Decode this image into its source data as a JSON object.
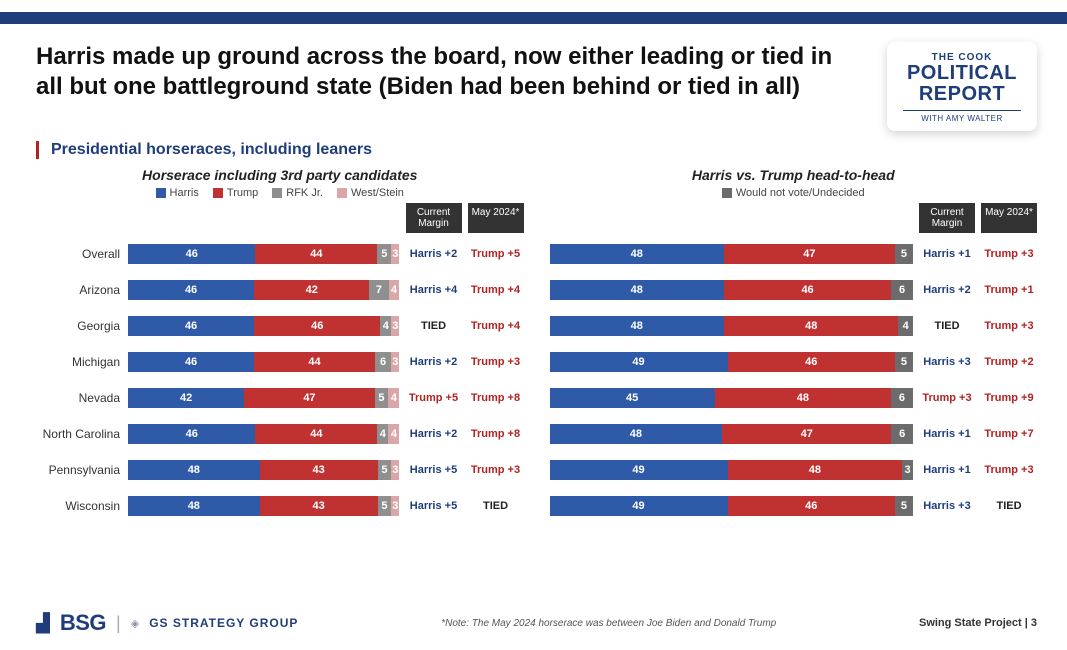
{
  "colors": {
    "harris": "#2e5aa8",
    "trump": "#c03131",
    "rfk": "#8f8f8f",
    "west": "#d9a7a7",
    "undecided": "#6b6b6b",
    "header_bar": "#1f3d7a",
    "margin_harris": "#1f3d7a",
    "margin_trump": "#b22222",
    "margin_tied": "#222222",
    "col_header_bg": "#333333",
    "background": "#ffffff"
  },
  "title": "Harris made up ground across the board, now either leading or tied in all but one battleground state (Biden had been behind or tied in all)",
  "subtitle": "Presidential horseraces, including leaners",
  "logo": {
    "top": "THE COOK",
    "mid1": "POLITICAL",
    "mid2": "REPORT",
    "bot": "WITH AMY WALTER"
  },
  "panel_left": {
    "title": "Horserace including 3rd party candidates",
    "legend": [
      {
        "label": "Harris",
        "color_key": "harris"
      },
      {
        "label": "Trump",
        "color_key": "trump"
      },
      {
        "label": "RFK Jr.",
        "color_key": "rfk"
      },
      {
        "label": "West/Stein",
        "color_key": "west"
      }
    ],
    "col_header_1": "Current Margin",
    "col_header_2": "May 2024*",
    "rows": [
      {
        "label": "Overall",
        "segs": [
          {
            "v": 46,
            "k": "harris"
          },
          {
            "v": 44,
            "k": "trump"
          },
          {
            "v": 5,
            "k": "rfk"
          },
          {
            "v": 3,
            "k": "west"
          }
        ],
        "m1": {
          "text": "Harris +2",
          "who": "harris"
        },
        "m2": {
          "text": "Trump +5",
          "who": "trump"
        }
      },
      {
        "label": "Arizona",
        "segs": [
          {
            "v": 46,
            "k": "harris"
          },
          {
            "v": 42,
            "k": "trump"
          },
          {
            "v": 7,
            "k": "rfk"
          },
          {
            "v": 4,
            "k": "west"
          }
        ],
        "m1": {
          "text": "Harris +4",
          "who": "harris"
        },
        "m2": {
          "text": "Trump +4",
          "who": "trump"
        }
      },
      {
        "label": "Georgia",
        "segs": [
          {
            "v": 46,
            "k": "harris"
          },
          {
            "v": 46,
            "k": "trump"
          },
          {
            "v": 4,
            "k": "rfk"
          },
          {
            "v": 3,
            "k": "west"
          }
        ],
        "m1": {
          "text": "TIED",
          "who": "tied"
        },
        "m2": {
          "text": "Trump +4",
          "who": "trump"
        }
      },
      {
        "label": "Michigan",
        "segs": [
          {
            "v": 46,
            "k": "harris"
          },
          {
            "v": 44,
            "k": "trump"
          },
          {
            "v": 6,
            "k": "rfk"
          },
          {
            "v": 3,
            "k": "west"
          }
        ],
        "m1": {
          "text": "Harris +2",
          "who": "harris"
        },
        "m2": {
          "text": "Trump +3",
          "who": "trump"
        }
      },
      {
        "label": "Nevada",
        "segs": [
          {
            "v": 42,
            "k": "harris"
          },
          {
            "v": 47,
            "k": "trump"
          },
          {
            "v": 5,
            "k": "rfk"
          },
          {
            "v": 4,
            "k": "west"
          }
        ],
        "m1": {
          "text": "Trump +5",
          "who": "trump"
        },
        "m2": {
          "text": "Trump +8",
          "who": "trump"
        }
      },
      {
        "label": "North Carolina",
        "segs": [
          {
            "v": 46,
            "k": "harris"
          },
          {
            "v": 44,
            "k": "trump"
          },
          {
            "v": 4,
            "k": "rfk"
          },
          {
            "v": 4,
            "k": "west"
          }
        ],
        "m1": {
          "text": "Harris +2",
          "who": "harris"
        },
        "m2": {
          "text": "Trump +8",
          "who": "trump"
        }
      },
      {
        "label": "Pennsylvania",
        "segs": [
          {
            "v": 48,
            "k": "harris"
          },
          {
            "v": 43,
            "k": "trump"
          },
          {
            "v": 5,
            "k": "rfk"
          },
          {
            "v": 3,
            "k": "west"
          }
        ],
        "m1": {
          "text": "Harris +5",
          "who": "harris"
        },
        "m2": {
          "text": "Trump +3",
          "who": "trump"
        }
      },
      {
        "label": "Wisconsin",
        "segs": [
          {
            "v": 48,
            "k": "harris"
          },
          {
            "v": 43,
            "k": "trump"
          },
          {
            "v": 5,
            "k": "rfk"
          },
          {
            "v": 3,
            "k": "west"
          }
        ],
        "m1": {
          "text": "Harris +5",
          "who": "harris"
        },
        "m2": {
          "text": "TIED",
          "who": "tied"
        }
      }
    ]
  },
  "panel_right": {
    "title": "Harris vs. Trump head-to-head",
    "legend": [
      {
        "label": "Would not vote/Undecided",
        "color_key": "undecided"
      }
    ],
    "col_header_1": "Current Margin",
    "col_header_2": "May 2024*",
    "rows": [
      {
        "label": "",
        "segs": [
          {
            "v": 48,
            "k": "harris"
          },
          {
            "v": 47,
            "k": "trump"
          },
          {
            "v": 5,
            "k": "undecided"
          }
        ],
        "m1": {
          "text": "Harris +1",
          "who": "harris"
        },
        "m2": {
          "text": "Trump +3",
          "who": "trump"
        }
      },
      {
        "label": "",
        "segs": [
          {
            "v": 48,
            "k": "harris"
          },
          {
            "v": 46,
            "k": "trump"
          },
          {
            "v": 6,
            "k": "undecided"
          }
        ],
        "m1": {
          "text": "Harris +2",
          "who": "harris"
        },
        "m2": {
          "text": "Trump +1",
          "who": "trump"
        }
      },
      {
        "label": "",
        "segs": [
          {
            "v": 48,
            "k": "harris"
          },
          {
            "v": 48,
            "k": "trump"
          },
          {
            "v": 4,
            "k": "undecided"
          }
        ],
        "m1": {
          "text": "TIED",
          "who": "tied"
        },
        "m2": {
          "text": "Trump +3",
          "who": "trump"
        }
      },
      {
        "label": "",
        "segs": [
          {
            "v": 49,
            "k": "harris"
          },
          {
            "v": 46,
            "k": "trump"
          },
          {
            "v": 5,
            "k": "undecided"
          }
        ],
        "m1": {
          "text": "Harris +3",
          "who": "harris"
        },
        "m2": {
          "text": "Trump +2",
          "who": "trump"
        }
      },
      {
        "label": "",
        "segs": [
          {
            "v": 45,
            "k": "harris"
          },
          {
            "v": 48,
            "k": "trump"
          },
          {
            "v": 6,
            "k": "undecided"
          }
        ],
        "m1": {
          "text": "Trump +3",
          "who": "trump"
        },
        "m2": {
          "text": "Trump +9",
          "who": "trump"
        }
      },
      {
        "label": "",
        "segs": [
          {
            "v": 48,
            "k": "harris"
          },
          {
            "v": 47,
            "k": "trump"
          },
          {
            "v": 6,
            "k": "undecided"
          }
        ],
        "m1": {
          "text": "Harris +1",
          "who": "harris"
        },
        "m2": {
          "text": "Trump +7",
          "who": "trump"
        }
      },
      {
        "label": "",
        "segs": [
          {
            "v": 49,
            "k": "harris"
          },
          {
            "v": 48,
            "k": "trump"
          },
          {
            "v": 3,
            "k": "undecided"
          }
        ],
        "m1": {
          "text": "Harris +1",
          "who": "harris"
        },
        "m2": {
          "text": "Trump +3",
          "who": "trump"
        }
      },
      {
        "label": "",
        "segs": [
          {
            "v": 49,
            "k": "harris"
          },
          {
            "v": 46,
            "k": "trump"
          },
          {
            "v": 5,
            "k": "undecided"
          }
        ],
        "m1": {
          "text": "Harris +3",
          "who": "harris"
        },
        "m2": {
          "text": "TIED",
          "who": "tied"
        }
      }
    ]
  },
  "footer": {
    "bsg": "BSG",
    "gs": "GS STRATEGY GROUP",
    "note": "*Note: The May 2024 horserace was between Joe Biden and Donald Trump",
    "page": "Swing State Project  |  3"
  }
}
